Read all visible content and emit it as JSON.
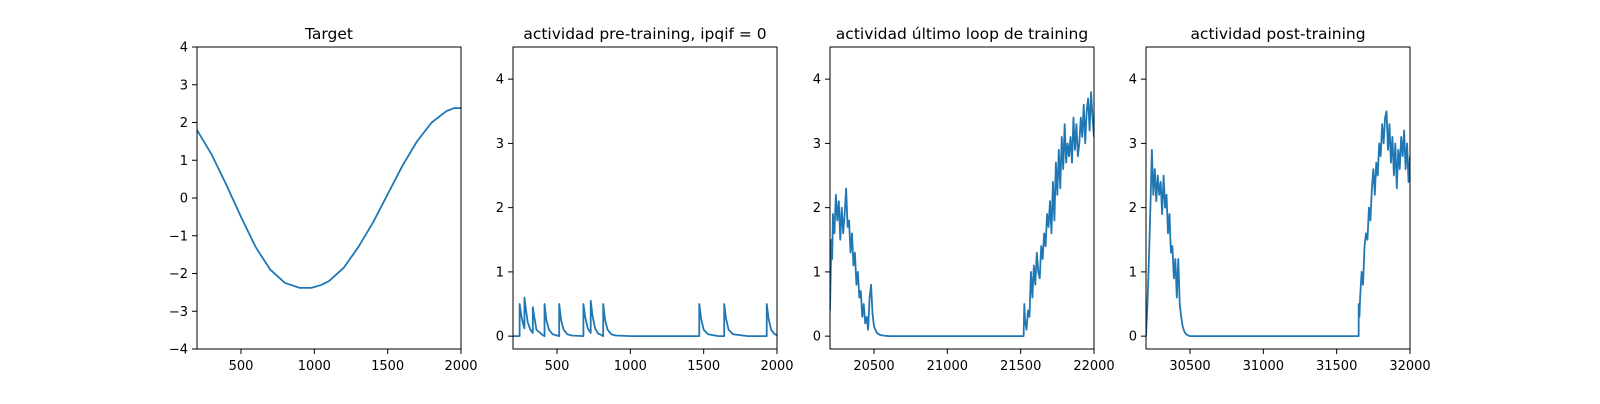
{
  "figure": {
    "background": "#ffffff",
    "line_color": "#1f77b4"
  },
  "chart_data": [
    {
      "type": "line",
      "title": "Target",
      "xlabel": "",
      "ylabel": "",
      "xlim": [
        200,
        2000
      ],
      "ylim": [
        -4,
        4
      ],
      "xticks": [
        500,
        1000,
        1500,
        2000
      ],
      "xtick_labels": [
        "500",
        "1000",
        "1500",
        "2000"
      ],
      "yticks": [
        -4,
        -3,
        -2,
        -1,
        0,
        1,
        2,
        3,
        4
      ],
      "ytick_labels": [
        "−4",
        "−3",
        "−2",
        "−1",
        "0",
        "1",
        "2",
        "3",
        "4"
      ],
      "grid": false,
      "series": [
        {
          "x": [
            200,
            300,
            400,
            500,
            600,
            700,
            800,
            900,
            980,
            1050,
            1100,
            1200,
            1300,
            1400,
            1500,
            1600,
            1700,
            1800,
            1900,
            1950,
            2000
          ],
          "y": [
            1.8,
            1.15,
            0.35,
            -0.5,
            -1.3,
            -1.9,
            -2.25,
            -2.38,
            -2.38,
            -2.3,
            -2.2,
            -1.85,
            -1.3,
            -0.65,
            0.1,
            0.85,
            1.5,
            2.0,
            2.3,
            2.38,
            2.38
          ]
        }
      ]
    },
    {
      "type": "line",
      "title": "actividad pre-training, ipqif = 0",
      "xlabel": "",
      "ylabel": "",
      "xlim": [
        200,
        2000
      ],
      "ylim": [
        -0.2,
        4.5
      ],
      "xticks": [
        500,
        1000,
        1500,
        2000
      ],
      "xtick_labels": [
        "500",
        "1000",
        "1500",
        "2000"
      ],
      "yticks": [
        0,
        1,
        2,
        3,
        4
      ],
      "ytick_labels": [
        "0",
        "1",
        "2",
        "3",
        "4"
      ],
      "grid": false,
      "series": [
        {
          "x": [
            200,
            245,
            245,
            258,
            270,
            278,
            278,
            286,
            300,
            318,
            335,
            335,
            345,
            360,
            400,
            415,
            415,
            428,
            445,
            470,
            500,
            515,
            515,
            528,
            545,
            570,
            600,
            680,
            680,
            692,
            710,
            730,
            730,
            742,
            760,
            780,
            800,
            815,
            815,
            828,
            845,
            870,
            900,
            1000,
            1100,
            1200,
            1300,
            1400,
            1470,
            1470,
            1482,
            1500,
            1530,
            1600,
            1640,
            1640,
            1652,
            1670,
            1700,
            1800,
            1900,
            1930,
            1930,
            1942,
            1960,
            1980,
            2000
          ],
          "y": [
            0,
            0,
            0.5,
            0.3,
            0.18,
            0.12,
            0.6,
            0.45,
            0.22,
            0.1,
            0.05,
            0.45,
            0.3,
            0.1,
            0.02,
            0,
            0.5,
            0.25,
            0.1,
            0.03,
            0.01,
            0,
            0.5,
            0.25,
            0.1,
            0.03,
            0.01,
            0,
            0.5,
            0.3,
            0.12,
            0.05,
            0.55,
            0.32,
            0.12,
            0.04,
            0.02,
            0,
            0.5,
            0.25,
            0.1,
            0.03,
            0.01,
            0,
            0,
            0,
            0,
            0,
            0,
            0.5,
            0.28,
            0.1,
            0.03,
            0,
            0,
            0.5,
            0.28,
            0.1,
            0.03,
            0,
            0,
            0,
            0.5,
            0.28,
            0.1,
            0.04,
            0.01
          ]
        }
      ]
    },
    {
      "type": "line",
      "title": "actividad último loop de training",
      "xlabel": "",
      "ylabel": "",
      "xlim": [
        20200,
        22000
      ],
      "ylim": [
        -0.2,
        4.5
      ],
      "xticks": [
        20500,
        21000,
        21500,
        22000
      ],
      "xtick_labels": [
        "20500",
        "21000",
        "21500",
        "22000"
      ],
      "yticks": [
        0,
        1,
        2,
        3,
        4
      ],
      "ytick_labels": [
        "0",
        "1",
        "2",
        "3",
        "4"
      ],
      "grid": false,
      "series": [
        {
          "x": [
            20200,
            20205,
            20210,
            20215,
            20220,
            20230,
            20240,
            20250,
            20260,
            20270,
            20280,
            20290,
            20300,
            20310,
            20320,
            20330,
            20340,
            20350,
            20360,
            20370,
            20380,
            20390,
            20400,
            20410,
            20420,
            20430,
            20440,
            20450,
            20460,
            20470,
            20480,
            20490,
            20500,
            20520,
            20540,
            20560,
            20600,
            20700,
            20800,
            20900,
            21000,
            21100,
            21200,
            21300,
            21400,
            21500,
            21520,
            21525,
            21530,
            21540,
            21550,
            21560,
            21570,
            21580,
            21590,
            21600,
            21610,
            21620,
            21630,
            21640,
            21650,
            21660,
            21670,
            21680,
            21690,
            21700,
            21710,
            21720,
            21730,
            21740,
            21750,
            21760,
            21770,
            21780,
            21790,
            21800,
            21810,
            21820,
            21830,
            21840,
            21850,
            21860,
            21870,
            21880,
            21890,
            21900,
            21910,
            21920,
            21930,
            21940,
            21950,
            21960,
            21970,
            21980,
            21990,
            22000
          ],
          "y": [
            0.4,
            1.0,
            1.5,
            1.2,
            1.9,
            1.6,
            2.2,
            1.8,
            2.1,
            1.5,
            2.0,
            1.6,
            1.9,
            2.3,
            1.7,
            1.8,
            1.3,
            1.6,
            1.1,
            1.3,
            0.8,
            1.0,
            0.6,
            0.7,
            0.3,
            0.5,
            0.2,
            0.3,
            0.1,
            0.6,
            0.8,
            0.35,
            0.15,
            0.05,
            0.02,
            0.01,
            0,
            0,
            0,
            0,
            0,
            0,
            0,
            0,
            0,
            0,
            0,
            0.5,
            0.25,
            0.1,
            0.4,
            0.3,
            1.0,
            0.6,
            1.1,
            0.8,
            1.3,
            1.0,
            0.9,
            1.4,
            1.2,
            1.6,
            1.4,
            1.9,
            1.7,
            2.1,
            1.6,
            2.4,
            1.8,
            2.7,
            2.2,
            2.9,
            2.3,
            3.1,
            2.6,
            3.3,
            2.7,
            3.0,
            2.8,
            3.1,
            2.7,
            3.4,
            2.9,
            3.3,
            2.8,
            3.0,
            3.4,
            3.1,
            3.6,
            3.0,
            3.5,
            3.7,
            3.2,
            3.8,
            3.4,
            3.1
          ]
        }
      ]
    },
    {
      "type": "line",
      "title": "actividad post-training",
      "xlabel": "",
      "ylabel": "",
      "xlim": [
        30200,
        32000
      ],
      "ylim": [
        -0.2,
        4.5
      ],
      "xticks": [
        30500,
        31000,
        31500,
        32000
      ],
      "xtick_labels": [
        "30500",
        "31000",
        "31500",
        "32000"
      ],
      "yticks": [
        0,
        1,
        2,
        3,
        4
      ],
      "ytick_labels": [
        "0",
        "1",
        "2",
        "3",
        "4"
      ],
      "grid": false,
      "series": [
        {
          "x": [
            30200,
            30210,
            30220,
            30230,
            30240,
            30250,
            30260,
            30270,
            30280,
            30290,
            30300,
            30310,
            30320,
            30330,
            30340,
            30350,
            30360,
            30370,
            30380,
            30390,
            30400,
            30410,
            30420,
            30430,
            30440,
            30450,
            30460,
            30470,
            30480,
            30490,
            30500,
            30520,
            30540,
            30560,
            30600,
            30700,
            30800,
            30900,
            31000,
            31100,
            31200,
            31300,
            31400,
            31500,
            31600,
            31650,
            31650,
            31655,
            31660,
            31670,
            31680,
            31690,
            31700,
            31710,
            31720,
            31730,
            31740,
            31750,
            31760,
            31770,
            31780,
            31790,
            31800,
            31810,
            31820,
            31830,
            31840,
            31850,
            31860,
            31870,
            31880,
            31890,
            31900,
            31910,
            31920,
            31930,
            31940,
            31950,
            31960,
            31970,
            31980,
            31990,
            32000
          ],
          "y": [
            0,
            0.5,
            1.2,
            2.0,
            2.9,
            2.2,
            2.6,
            2.1,
            2.5,
            2.2,
            2.4,
            1.9,
            2.5,
            2.0,
            2.2,
            1.6,
            1.9,
            1.3,
            1.4,
            0.9,
            1.2,
            0.6,
            1.2,
            0.5,
            0.3,
            0.15,
            0.08,
            0.04,
            0.02,
            0.01,
            0,
            0,
            0,
            0,
            0,
            0,
            0,
            0,
            0,
            0,
            0,
            0,
            0,
            0,
            0,
            0,
            0.5,
            0.3,
            0.6,
            1.0,
            0.8,
            1.4,
            1.6,
            1.5,
            2.0,
            1.8,
            2.3,
            2.6,
            2.2,
            2.7,
            2.5,
            3.0,
            2.8,
            3.3,
            3.0,
            3.4,
            3.5,
            2.9,
            3.3,
            2.7,
            3.1,
            2.5,
            3.0,
            2.3,
            2.9,
            2.6,
            3.1,
            2.8,
            3.2,
            2.6,
            3.0,
            2.4,
            2.8
          ]
        }
      ]
    }
  ]
}
